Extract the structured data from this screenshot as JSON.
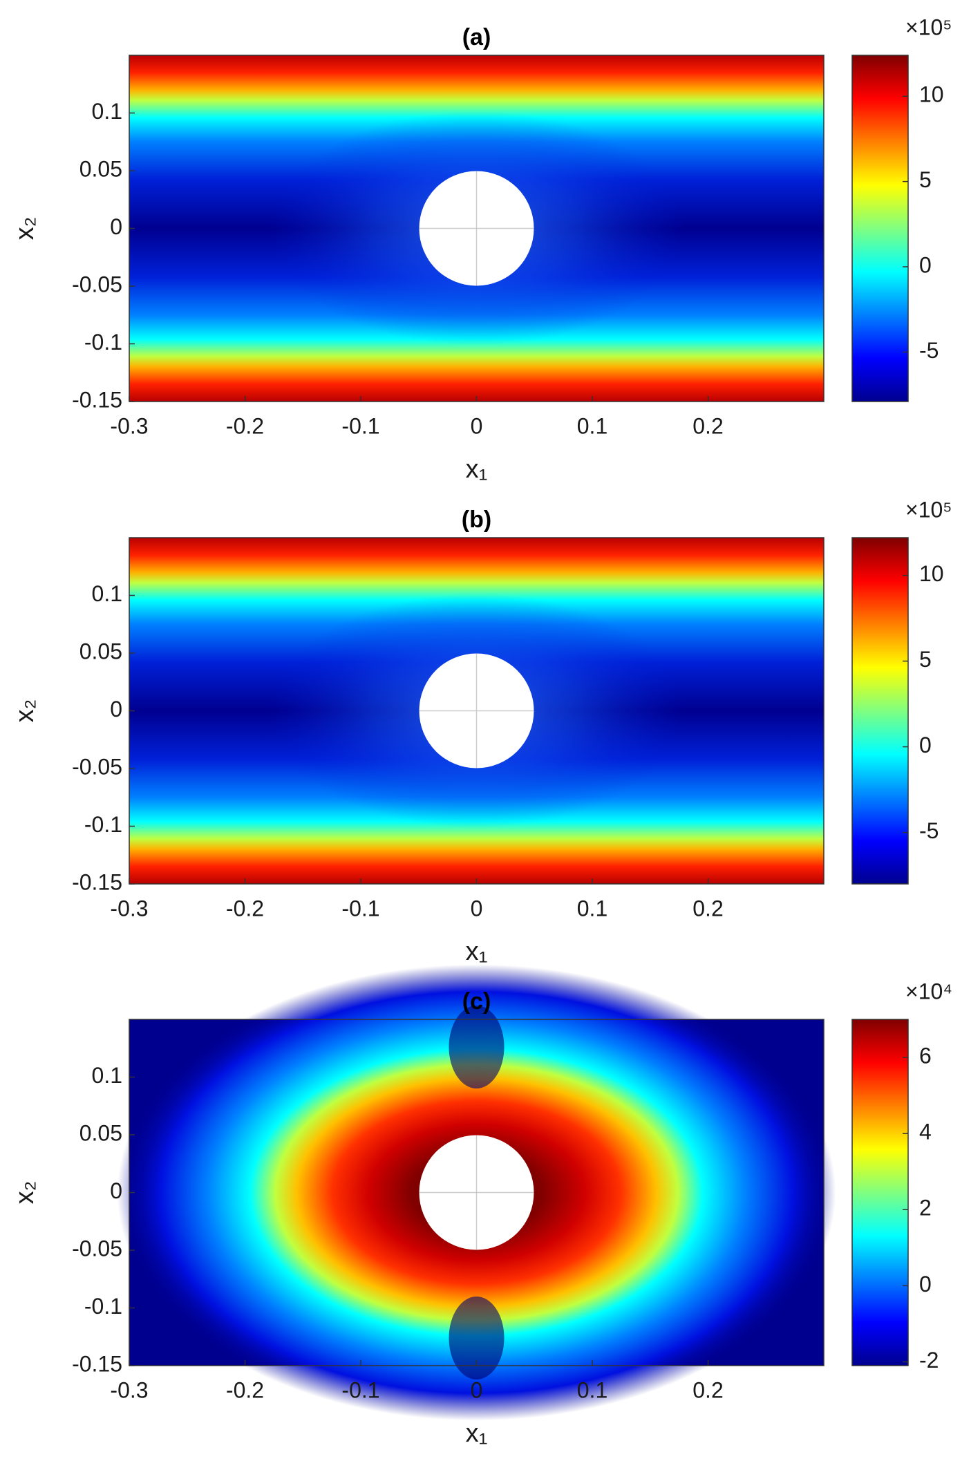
{
  "chart_data": [
    {
      "type": "heatmap",
      "title": "(a)",
      "xlabel": "x₁",
      "ylabel": "x₂",
      "field": "stripes",
      "xlim": [
        -0.3,
        0.3
      ],
      "ylim": [
        -0.15,
        0.15
      ],
      "xticks": [
        -0.3,
        -0.2,
        -0.1,
        0,
        0.1,
        0.2
      ],
      "yticks": [
        -0.15,
        -0.1,
        -0.05,
        0,
        0.05,
        0.1
      ],
      "clim": [
        -7.9,
        12.4
      ],
      "cticks": [
        -5,
        0,
        5,
        10
      ],
      "colorbar_multiplier": "×10⁵",
      "colormap": "jet"
    },
    {
      "type": "heatmap",
      "title": "(b)",
      "xlabel": "x₁",
      "ylabel": "x₂",
      "field": "stripes",
      "xlim": [
        -0.3,
        0.3
      ],
      "ylim": [
        -0.15,
        0.15
      ],
      "xticks": [
        -0.3,
        -0.2,
        -0.1,
        0,
        0.1,
        0.2
      ],
      "yticks": [
        -0.15,
        -0.1,
        -0.05,
        0,
        0.05,
        0.1
      ],
      "clim": [
        -8.0,
        12.2
      ],
      "cticks": [
        -5,
        0,
        5,
        10
      ],
      "colorbar_multiplier": "×10⁵",
      "colormap": "jet"
    },
    {
      "type": "heatmap",
      "title": "(c)",
      "xlabel": "x₁",
      "ylabel": "x₂",
      "field": "ring",
      "xlim": [
        -0.3,
        0.3
      ],
      "ylim": [
        -0.15,
        0.15
      ],
      "xticks": [
        -0.3,
        -0.2,
        -0.1,
        0,
        0.1,
        0.2
      ],
      "yticks": [
        -0.15,
        -0.1,
        -0.05,
        0,
        0.05,
        0.1
      ],
      "clim": [
        -2.1,
        7
      ],
      "cticks": [
        -2,
        0,
        2,
        4,
        6
      ],
      "colorbar_multiplier": "×10⁴",
      "colormap": "jet"
    }
  ]
}
